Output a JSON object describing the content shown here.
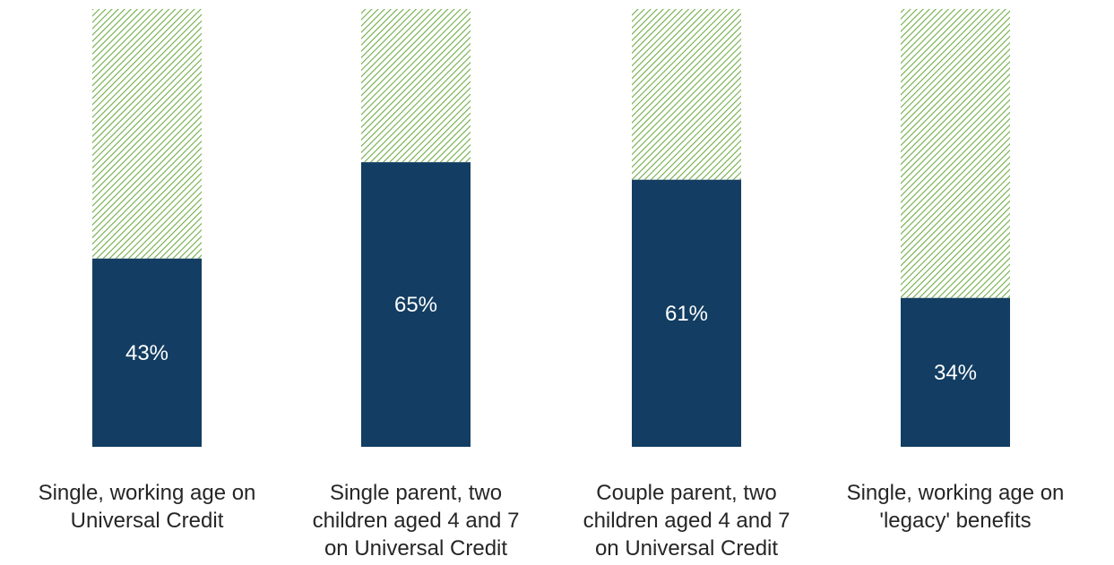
{
  "chart_data": {
    "type": "bar",
    "stacked_to_total": true,
    "categories": [
      [
        "Single, working age on",
        "Universal Credit"
      ],
      [
        "Single parent, two",
        "children aged 4 and 7",
        "on Universal Credit"
      ],
      [
        "Couple parent, two",
        "children aged 4 and 7",
        "on Universal Credit"
      ],
      [
        "Single, working age on",
        "'legacy' benefits"
      ]
    ],
    "values": [
      43,
      65,
      61,
      34
    ],
    "data_labels": [
      "43%",
      "65%",
      "61%",
      "34%"
    ],
    "total": 100,
    "ylim": [
      0,
      100
    ],
    "title": "",
    "xlabel": "",
    "ylabel": "",
    "grid": false,
    "legend": "none",
    "colors": {
      "value_bar": "#133d62",
      "remainder_hatch": "#70ad47",
      "label_text": "#ffffff",
      "category_text": "#262626"
    }
  }
}
